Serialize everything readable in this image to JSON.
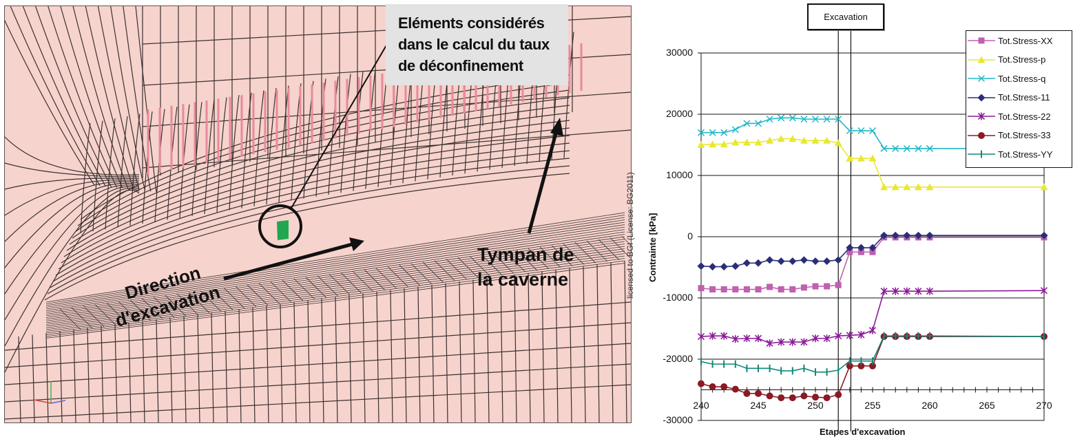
{
  "left_panel": {
    "callout": {
      "lines": [
        "Eléments considérés",
        "dans le calcul du taux",
        "de déconfinement"
      ]
    },
    "direction_label": [
      "Direction",
      "d'excavation"
    ],
    "tympan_label": [
      "Tympan de",
      "la caverne"
    ],
    "watermark": "licensed to BGI (License: BG2011)",
    "colors": {
      "mesh_fill": "#f6d3cc",
      "mesh_line": "#3a3030",
      "highlight_element": "#1fa84f",
      "rock_bolts": "#e88a9c"
    }
  },
  "chart_data": {
    "type": "line",
    "title": "",
    "annotation": "Excavation",
    "annotation_x_range": [
      252,
      253.1
    ],
    "xlabel": "Etapes d'excavation",
    "ylabel": "Contrainte [kPa]",
    "xlim": [
      240,
      270
    ],
    "ylim": [
      -30000,
      30000
    ],
    "x_axis_crossing": -25000,
    "xticks": [
      "240",
      "245",
      "250",
      "255",
      "260",
      "265",
      "270"
    ],
    "yticks": [
      "30000",
      "20000",
      "10000",
      "0",
      "-10000",
      "-20000",
      "-30000"
    ],
    "grid": "horizontal",
    "legend_position": "upper right",
    "x": [
      240,
      241,
      242,
      243,
      244,
      245,
      246,
      247,
      248,
      249,
      250,
      251,
      252,
      253,
      254,
      255,
      256,
      257,
      258,
      259,
      260,
      270
    ],
    "series": [
      {
        "name": "Tot.Stress-XX",
        "color": "#c060b0",
        "marker": "square",
        "values": [
          -8400,
          -8600,
          -8600,
          -8600,
          -8600,
          -8600,
          -8200,
          -8600,
          -8600,
          -8300,
          -8100,
          -8100,
          -7900,
          -2500,
          -2500,
          -2500,
          -100,
          -100,
          -100,
          -100,
          -100,
          -100
        ]
      },
      {
        "name": "Tot.Stress-p",
        "color": "#e8e830",
        "marker": "triangle",
        "values": [
          15000,
          15100,
          15100,
          15400,
          15400,
          15400,
          15700,
          16000,
          16000,
          15700,
          15700,
          15700,
          15300,
          12800,
          12800,
          12800,
          8100,
          8100,
          8100,
          8100,
          8100,
          8100
        ]
      },
      {
        "name": "Tot.Stress-q",
        "color": "#20b8c8",
        "marker": "x",
        "values": [
          17000,
          17000,
          17000,
          17500,
          18500,
          18500,
          19200,
          19400,
          19400,
          19200,
          19200,
          19200,
          19200,
          17300,
          17300,
          17300,
          14400,
          14400,
          14400,
          14400,
          14400,
          14400
        ]
      },
      {
        "name": "Tot.Stress-11",
        "color": "#2a2e78",
        "marker": "diamond",
        "values": [
          -4800,
          -4900,
          -4900,
          -4800,
          -4300,
          -4300,
          -3800,
          -4000,
          -4000,
          -3800,
          -4000,
          -4000,
          -3800,
          -1800,
          -1800,
          -1800,
          200,
          200,
          200,
          200,
          200,
          200
        ]
      },
      {
        "name": "Tot.Stress-22",
        "color": "#8a1a98",
        "marker": "star",
        "values": [
          -16300,
          -16200,
          -16200,
          -16700,
          -16600,
          -16600,
          -17400,
          -17200,
          -17200,
          -17200,
          -16600,
          -16600,
          -16200,
          -16100,
          -16000,
          -15300,
          -8900,
          -8900,
          -8900,
          -8900,
          -8900,
          -8800
        ]
      },
      {
        "name": "Tot.Stress-33",
        "color": "#8a1a24",
        "marker": "circle",
        "values": [
          -24000,
          -24500,
          -24500,
          -24900,
          -25600,
          -25600,
          -26000,
          -26300,
          -26300,
          -26000,
          -26200,
          -26300,
          -25800,
          -21100,
          -21100,
          -21100,
          -16300,
          -16300,
          -16300,
          -16300,
          -16300,
          -16300
        ]
      },
      {
        "name": "Tot.Stress-YY",
        "color": "#108878",
        "marker": "plus",
        "values": [
          -20400,
          -20800,
          -20800,
          -20800,
          -21500,
          -21500,
          -21500,
          -21900,
          -21900,
          -21500,
          -22100,
          -22100,
          -21800,
          -20300,
          -20300,
          -20300,
          -16200,
          -16200,
          -16200,
          -16200,
          -16200,
          -16300
        ]
      }
    ]
  }
}
